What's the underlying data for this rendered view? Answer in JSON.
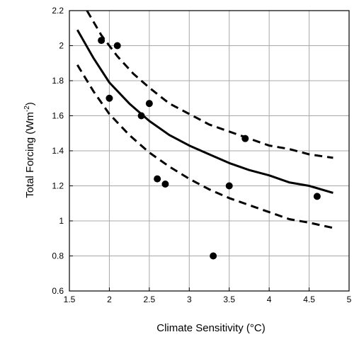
{
  "chart_data": {
    "type": "scatter",
    "xlabel": "Climate Sensitivity (°C)",
    "ylabel": {
      "main": "Total Forcing (Wm",
      "sup": "-2",
      "end": ")"
    },
    "xlim": [
      1.5,
      5
    ],
    "ylim": [
      0.6,
      2.2
    ],
    "x_ticks": [
      "1.5",
      "2",
      "2.5",
      "3",
      "3.5",
      "4",
      "4.5",
      "5"
    ],
    "y_ticks": [
      "0.6",
      "0.8",
      "1",
      "1.2",
      "1.4",
      "1.6",
      "1.8",
      "2",
      "2.2"
    ],
    "grid": true,
    "points": [
      {
        "x": 1.9,
        "y": 2.03
      },
      {
        "x": 2.1,
        "y": 2.0
      },
      {
        "x": 2.0,
        "y": 1.7
      },
      {
        "x": 2.4,
        "y": 1.6
      },
      {
        "x": 2.5,
        "y": 1.67
      },
      {
        "x": 2.6,
        "y": 1.24
      },
      {
        "x": 2.7,
        "y": 1.21
      },
      {
        "x": 3.3,
        "y": 0.8
      },
      {
        "x": 3.5,
        "y": 1.2
      },
      {
        "x": 3.7,
        "y": 1.47
      },
      {
        "x": 4.6,
        "y": 1.14
      }
    ],
    "curves": [
      {
        "style": "solid",
        "x": [
          1.6,
          1.8,
          2.0,
          2.25,
          2.5,
          2.75,
          3.0,
          3.25,
          3.5,
          3.75,
          4.0,
          4.25,
          4.5,
          4.8
        ],
        "y": [
          2.09,
          1.93,
          1.79,
          1.67,
          1.57,
          1.49,
          1.43,
          1.38,
          1.33,
          1.29,
          1.26,
          1.22,
          1.2,
          1.16
        ]
      },
      {
        "style": "dashed",
        "x": [
          1.72,
          1.9,
          2.1,
          2.3,
          2.5,
          2.75,
          3.0,
          3.25,
          3.5,
          3.75,
          4.0,
          4.25,
          4.5,
          4.8
        ],
        "y": [
          2.2,
          2.06,
          1.94,
          1.84,
          1.76,
          1.67,
          1.61,
          1.55,
          1.51,
          1.47,
          1.43,
          1.41,
          1.38,
          1.36
        ]
      },
      {
        "style": "dashed",
        "x": [
          1.6,
          1.8,
          2.0,
          2.25,
          2.5,
          2.75,
          3.0,
          3.25,
          3.5,
          3.75,
          4.0,
          4.25,
          4.5,
          4.8
        ],
        "y": [
          1.89,
          1.74,
          1.61,
          1.49,
          1.39,
          1.31,
          1.24,
          1.18,
          1.13,
          1.09,
          1.05,
          1.01,
          0.99,
          0.96
        ]
      }
    ]
  }
}
